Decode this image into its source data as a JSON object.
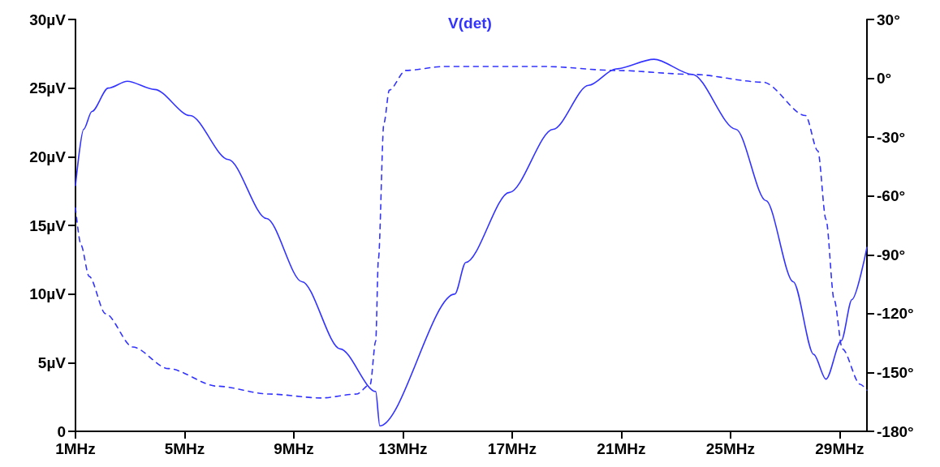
{
  "chart_data": {
    "type": "line",
    "title": "V(det)",
    "grid": false,
    "marker": "none",
    "xlim": [
      1,
      30
    ],
    "xticks": [
      {
        "value": 1,
        "label": "1MHz"
      },
      {
        "value": 5,
        "label": "5MHz"
      },
      {
        "value": 9,
        "label": "9MHz"
      },
      {
        "value": 13,
        "label": "13MHz"
      },
      {
        "value": 17,
        "label": "17MHz"
      },
      {
        "value": 21,
        "label": "21MHz"
      },
      {
        "value": 25,
        "label": "25MHz"
      },
      {
        "value": 29,
        "label": "29MHz"
      }
    ],
    "ylim": [
      0,
      30
    ],
    "yticks": [
      0,
      {
        "value": 5,
        "label": "5µV"
      },
      {
        "value": 10,
        "label": "10µV"
      },
      {
        "value": 15,
        "label": "15µV"
      },
      {
        "value": 20,
        "label": "20µV"
      },
      {
        "value": 25,
        "label": "25µV"
      },
      {
        "value": 30,
        "label": "30µV"
      }
    ],
    "y2lim": [
      -180,
      30
    ],
    "y2ticks": [
      {
        "value": -180,
        "label": "-180°"
      },
      {
        "value": -150,
        "label": "-150°"
      },
      {
        "value": -120,
        "label": "-120°"
      },
      {
        "value": -90,
        "label": "-90°"
      },
      {
        "value": -60,
        "label": "-60°"
      },
      {
        "value": -30,
        "label": "-30°"
      },
      {
        "value": 0,
        "label": "0°"
      },
      {
        "value": 30,
        "label": "30°"
      }
    ],
    "series": [
      {
        "color": "#3333ff",
        "line_style": "solid",
        "x": [
          1,
          1.3,
          1.6,
          2.2,
          2.9,
          3.9,
          5.2,
          6.6,
          8.0,
          9.3,
          10.7,
          12.0,
          12.15,
          14.9,
          15.3,
          16.9,
          18.5,
          19.8,
          20.8,
          22.2,
          23.6,
          25.2,
          26.3,
          27.3,
          28.05,
          28.5,
          29.06,
          29.45,
          30
        ],
        "values": [
          17.9,
          22.0,
          23.3,
          25.0,
          25.5,
          24.9,
          23.0,
          19.8,
          15.5,
          10.9,
          6.0,
          2.9,
          0.4,
          10.0,
          12.3,
          17.4,
          22.0,
          25.2,
          26.4,
          27.1,
          26.0,
          22.0,
          16.8,
          10.9,
          5.6,
          3.8,
          6.6,
          9.6,
          13.4
        ]
      },
      {
        "color": "#3333ff",
        "line_style": "dashed",
        "axis": "y2",
        "x": [
          1,
          1.2,
          1.5,
          2.1,
          3.1,
          4.4,
          6.2,
          8.1,
          10.0,
          11.3,
          11.8,
          12.0,
          12.1,
          12.3,
          12.5,
          13.1,
          14.5,
          18.2,
          20.8,
          23.6,
          26.2,
          27.75,
          28.2,
          28.5,
          28.8,
          29.1,
          29.75,
          30
        ],
        "values": [
          -66,
          -85,
          -101,
          -120,
          -137,
          -148,
          -157,
          -161,
          -163,
          -161,
          -156,
          -134,
          -92,
          -23,
          -6,
          4,
          6,
          6,
          4,
          2,
          -2,
          -19,
          -37,
          -72,
          -113,
          -138,
          -156,
          -159
        ]
      }
    ]
  }
}
